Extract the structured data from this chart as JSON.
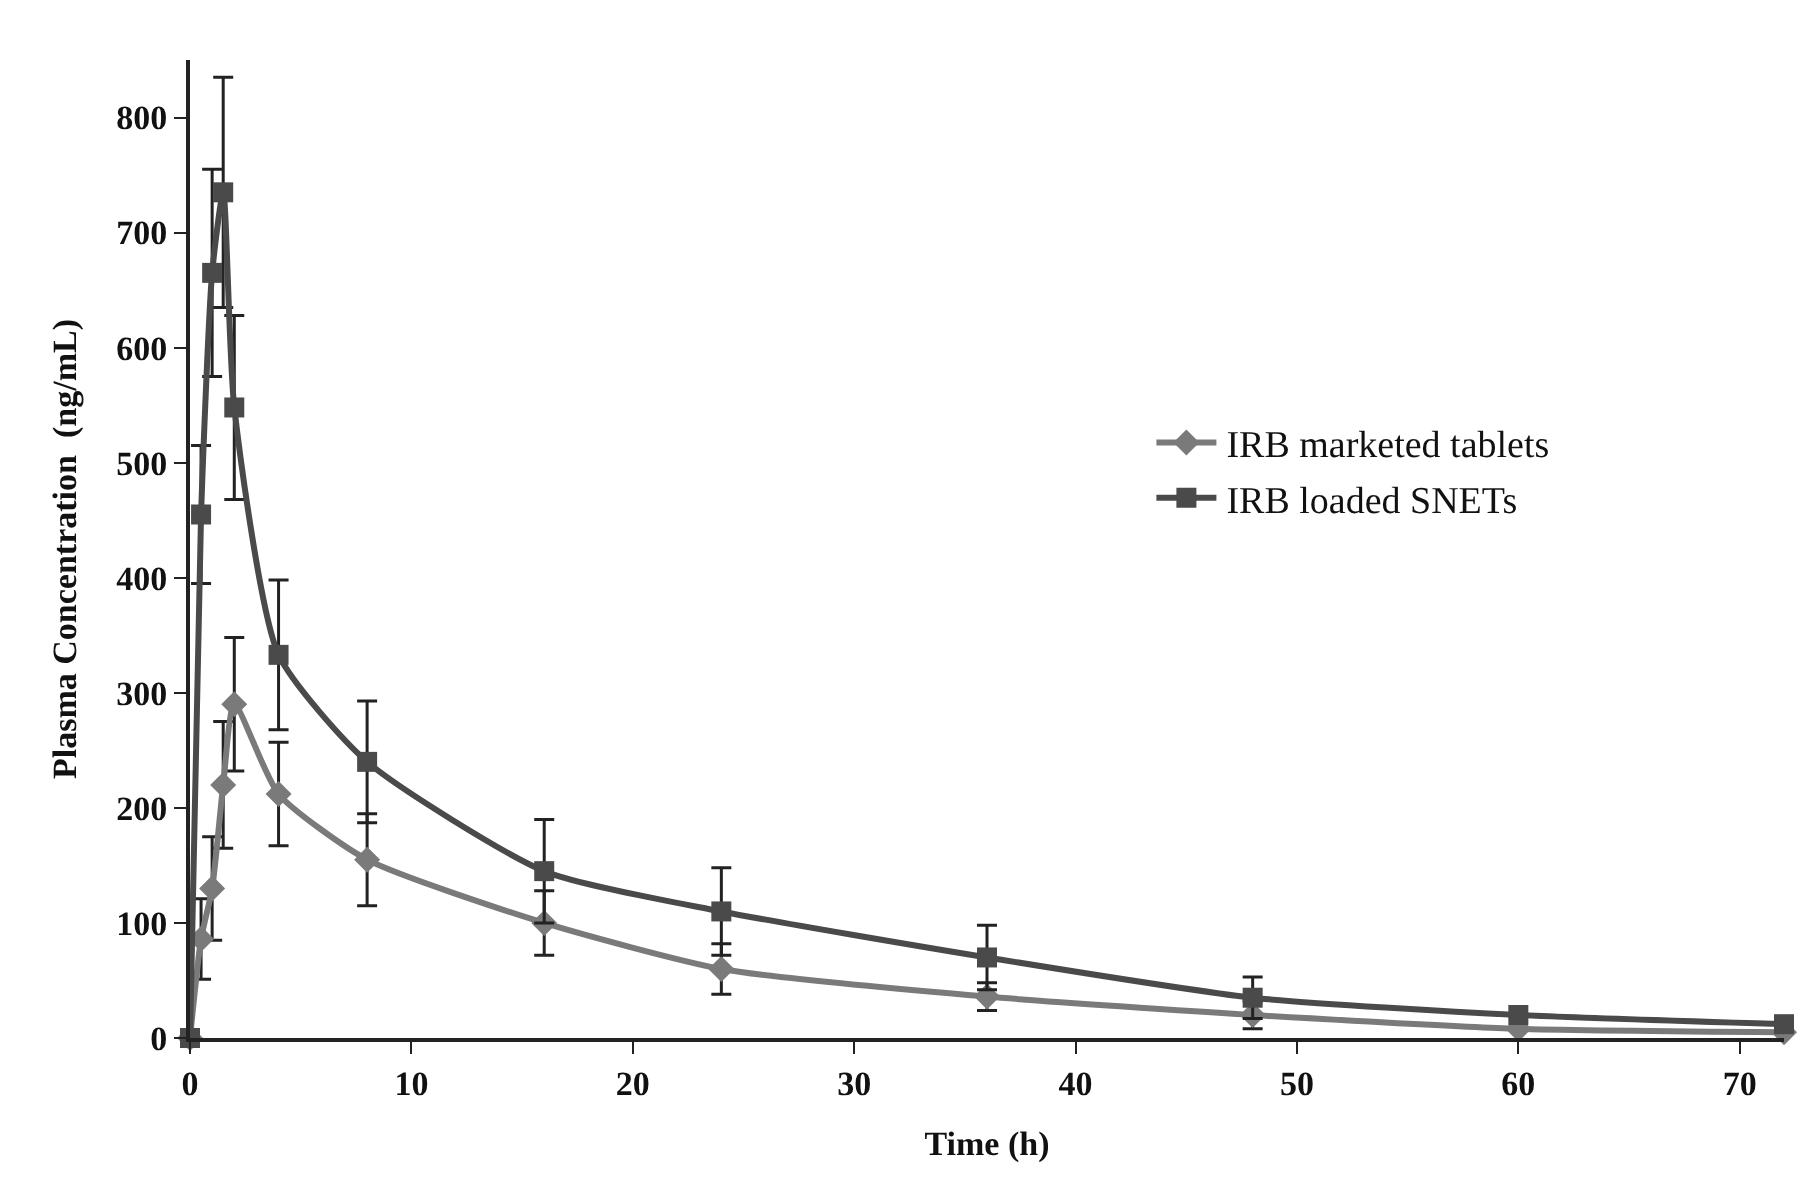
{
  "chart_data": {
    "type": "line",
    "xlabel": "Time (h)",
    "ylabel": "Plasma Concentration  (ng/mL)",
    "x": [
      0,
      0.5,
      1,
      1.5,
      2,
      4,
      8,
      16,
      24,
      36,
      48,
      60,
      72
    ],
    "series": [
      {
        "name": "IRB marketed tablets",
        "color": "#7a7a7a",
        "marker": "diamond",
        "values": [
          0,
          86,
          130,
          220,
          290,
          212,
          155,
          100,
          60,
          36,
          20,
          8,
          5
        ],
        "errors": [
          null,
          35,
          45,
          55,
          58,
          45,
          40,
          28,
          22,
          12,
          12,
          null,
          null
        ]
      },
      {
        "name": "IRB loaded SNETs",
        "color": "#4a4a4a",
        "marker": "square",
        "values": [
          0,
          455,
          665,
          735,
          548,
          333,
          240,
          145,
          110,
          70,
          35,
          20,
          12
        ],
        "errors": [
          null,
          60,
          90,
          100,
          80,
          65,
          53,
          45,
          38,
          28,
          18,
          null,
          null
        ]
      }
    ],
    "xlim": [
      0,
      72
    ],
    "xticks": [
      0,
      10,
      20,
      30,
      40,
      50,
      60,
      70
    ],
    "ylim": [
      0,
      850
    ],
    "yticks": [
      0,
      100,
      200,
      300,
      400,
      500,
      600,
      700,
      800
    ],
    "legend": "right",
    "line_style": "solid"
  }
}
